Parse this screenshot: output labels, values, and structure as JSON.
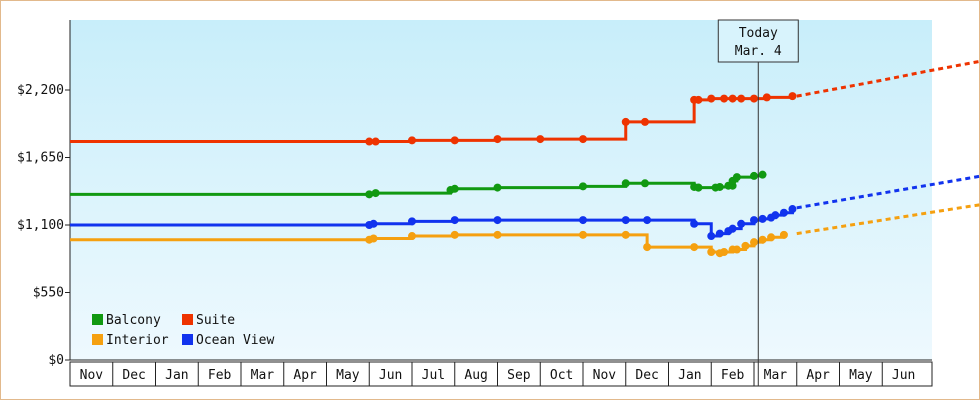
{
  "chart_data": {
    "type": "line",
    "title": "",
    "xlabel": "",
    "ylabel": "",
    "ylim": [
      0,
      2200
    ],
    "y_ticks": [
      "$0",
      "$550",
      "$1,100",
      "$1,650",
      "$2,200"
    ],
    "y_tick_values": [
      0,
      550,
      1100,
      1650,
      2200
    ],
    "x_months": [
      "Nov",
      "Dec",
      "Jan",
      "Feb",
      "Mar",
      "Apr",
      "May",
      "Jun",
      "Jul",
      "Aug",
      "Sep",
      "Oct",
      "Nov",
      "Dec",
      "Jan",
      "Feb",
      "Mar",
      "Apr",
      "May",
      "Jun"
    ],
    "today": {
      "line1": "Today",
      "line2": "Mar. 4",
      "month_index": 16.1
    },
    "grid": false,
    "legend_position": "bottom-left",
    "series": [
      {
        "name": "Balcony",
        "color": "#119911",
        "x": [
          0,
          7.0,
          7.15,
          8.9,
          9.0,
          10.0,
          12.0,
          13.0,
          13.45,
          14.6,
          14.7,
          14.7,
          15.1,
          15.2,
          15.4,
          15.5,
          15.5,
          15.6,
          16.0,
          16.2
        ],
        "y": [
          1350,
          1350,
          1360,
          1385,
          1395,
          1405,
          1415,
          1440,
          1440,
          1410,
          1405,
          1405,
          1405,
          1410,
          1420,
          1420,
          1460,
          1490,
          1500,
          1510
        ],
        "future_x": [],
        "future_y": []
      },
      {
        "name": "Suite",
        "color": "#ee3300",
        "x": [
          0,
          7.0,
          7.15,
          8.0,
          9.0,
          10.0,
          11.0,
          12.0,
          13.0,
          13.45,
          14.6,
          14.7,
          15.0,
          15.3,
          15.5,
          15.7,
          16.0,
          16.3,
          16.9
        ],
        "y": [
          1780,
          1780,
          1780,
          1790,
          1790,
          1800,
          1800,
          1800,
          1940,
          1940,
          2120,
          2120,
          2130,
          2130,
          2130,
          2130,
          2130,
          2140,
          2150
        ],
        "future_x": [
          17.0,
          18.0,
          19.0,
          20.0,
          21.0,
          22.0
        ],
        "future_y": [
          2150,
          2215,
          2280,
          2350,
          2415,
          2480
        ]
      },
      {
        "name": "Interior",
        "color": "#f5a010",
        "x": [
          0,
          7.0,
          7.1,
          8.0,
          9.0,
          10.0,
          12.0,
          13.0,
          13.5,
          14.6,
          15.0,
          15.2,
          15.3,
          15.5,
          15.6,
          15.8,
          16.0,
          16.2,
          16.4,
          16.7
        ],
        "y": [
          980,
          980,
          990,
          1010,
          1020,
          1020,
          1020,
          1020,
          920,
          920,
          880,
          870,
          880,
          900,
          900,
          930,
          960,
          980,
          1000,
          1020
        ],
        "future_x": [
          17.0,
          18.0,
          19.0,
          20.0,
          21.0,
          22.0
        ],
        "future_y": [
          1030,
          1085,
          1140,
          1195,
          1250,
          1300
        ]
      },
      {
        "name": "Ocean View",
        "color": "#1133ee",
        "x": [
          0,
          7.0,
          7.1,
          8.0,
          9.0,
          10.0,
          12.0,
          13.0,
          13.5,
          14.6,
          15.0,
          15.2,
          15.4,
          15.5,
          15.7,
          16.0,
          16.2,
          16.4,
          16.5,
          16.7,
          16.9
        ],
        "y": [
          1100,
          1100,
          1110,
          1130,
          1140,
          1140,
          1140,
          1140,
          1140,
          1110,
          1010,
          1030,
          1050,
          1070,
          1110,
          1140,
          1150,
          1160,
          1180,
          1200,
          1230
        ],
        "future_x": [
          17.0,
          18.0,
          19.0,
          20.0,
          21.0,
          22.0
        ],
        "future_y": [
          1240,
          1300,
          1360,
          1420,
          1480,
          1540
        ]
      }
    ],
    "legend": [
      {
        "name": "Balcony",
        "color": "#119911"
      },
      {
        "name": "Suite",
        "color": "#ee3300"
      },
      {
        "name": "Interior",
        "color": "#f5a010"
      },
      {
        "name": "Ocean View",
        "color": "#1133ee"
      }
    ]
  }
}
